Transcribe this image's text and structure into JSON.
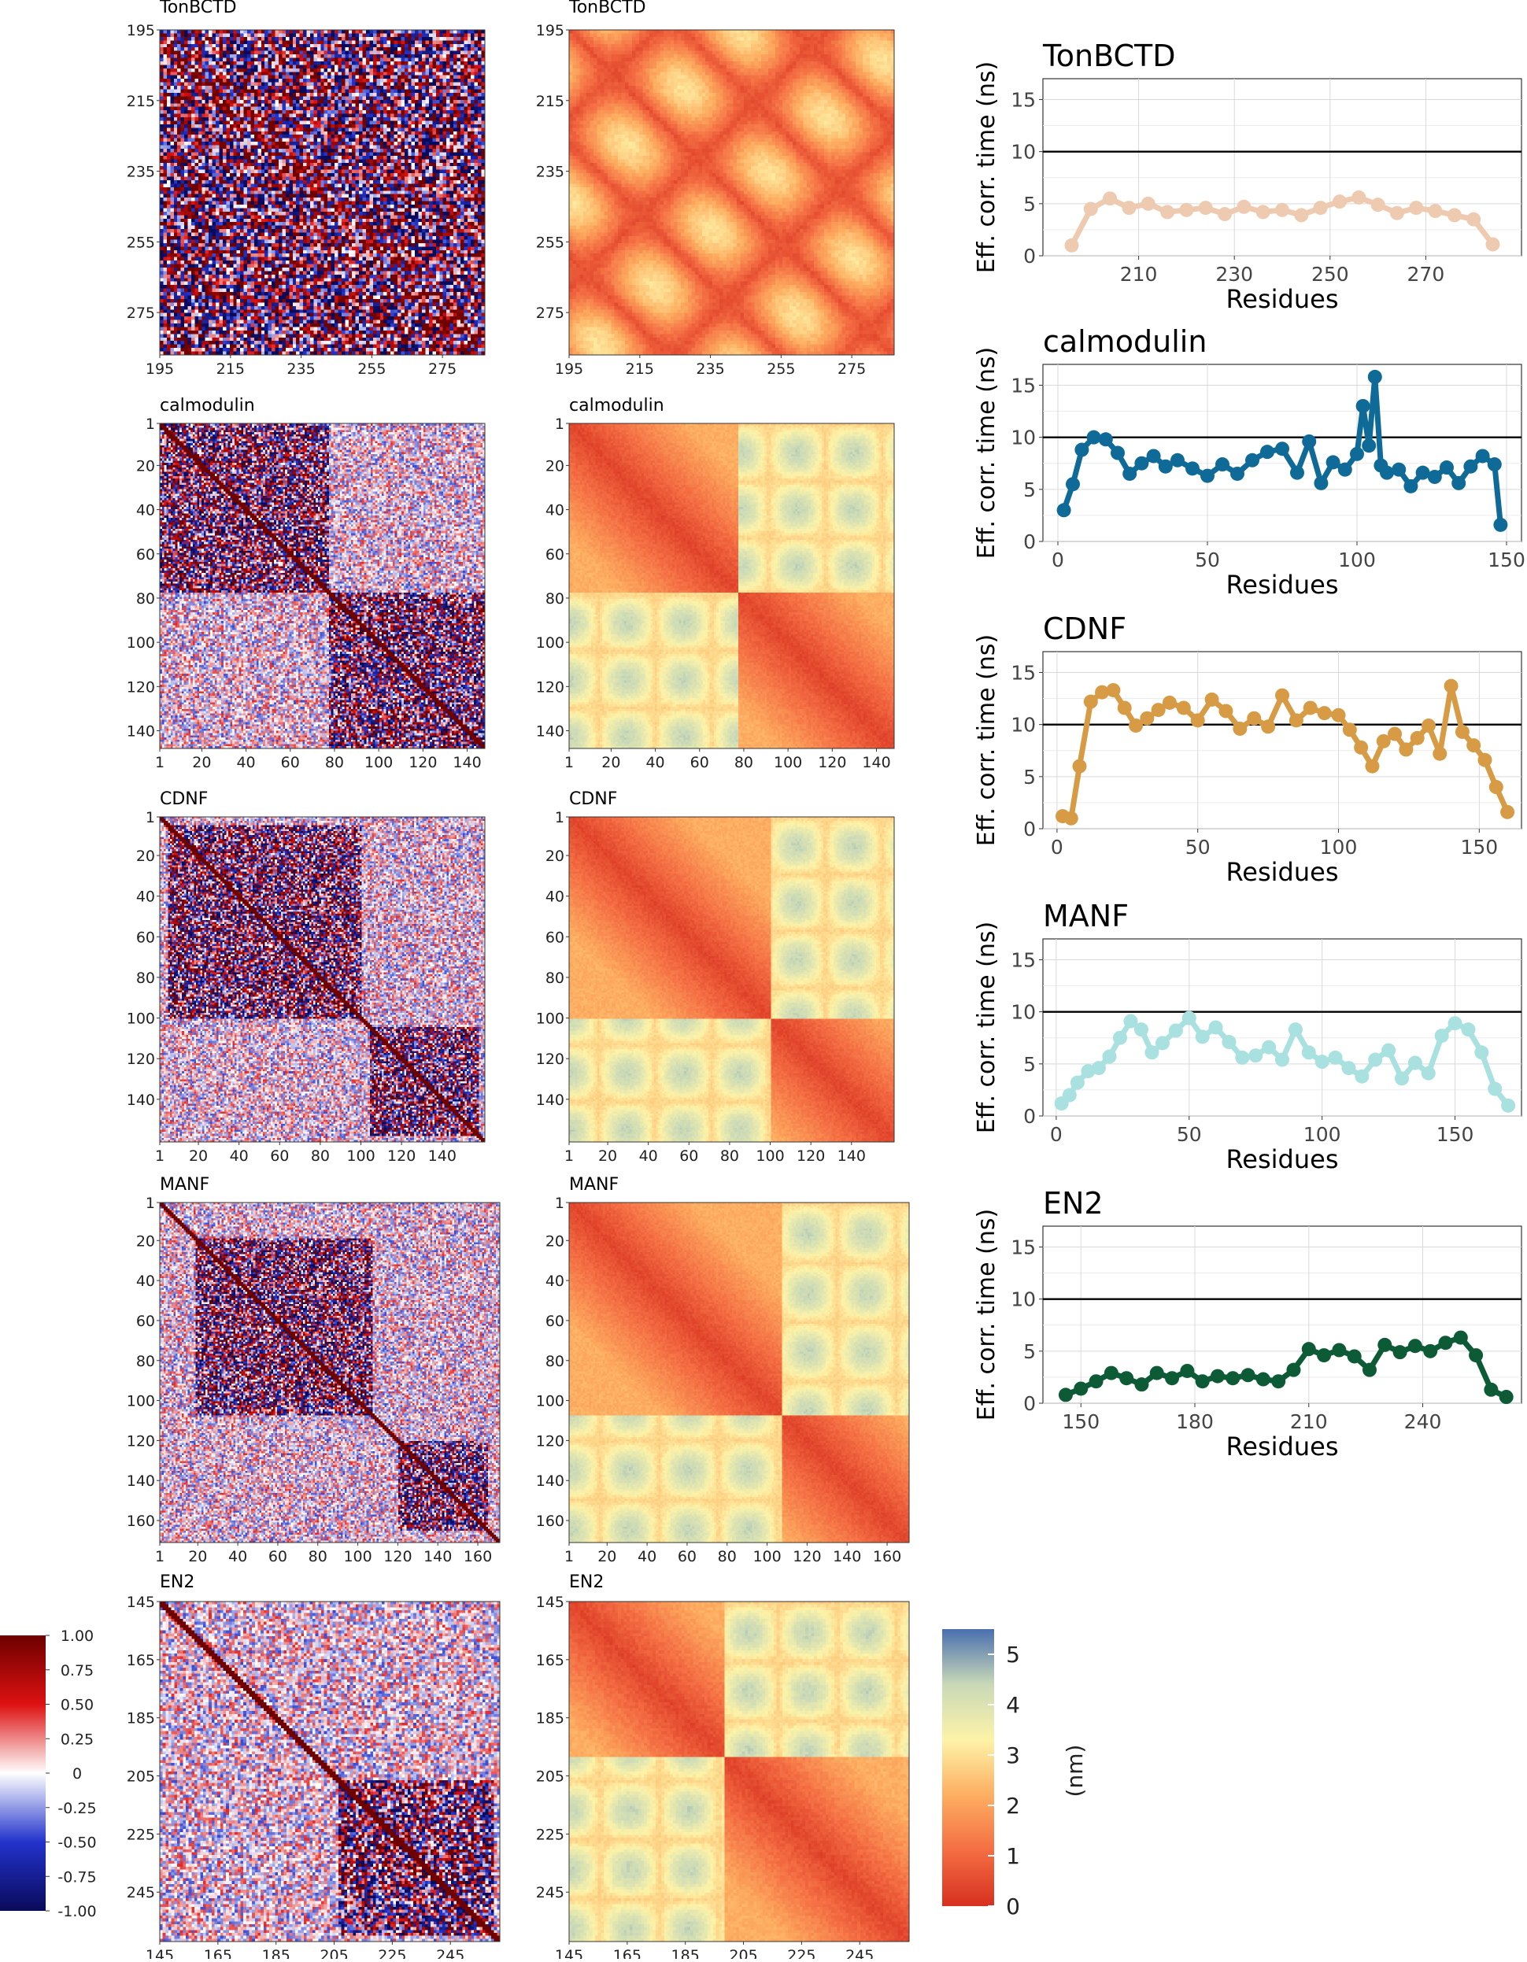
{
  "figure": {
    "rows": [
      "TonBCTD",
      "calmodulin",
      "CDNF",
      "MANF",
      "EN2"
    ]
  },
  "chart_data": [
    {
      "type": "heatmap",
      "panel": "covariance",
      "colorbar": {
        "min": -1.0,
        "max": 1.0,
        "ticks": [
          "1.00",
          "0.75",
          "0.50",
          "0.25",
          "0",
          "-0.25",
          "-0.50",
          "-0.75",
          "-1.00"
        ],
        "colors": [
          "#0a0a5a",
          "#2233cc",
          "#ffffff",
          "#dd1111",
          "#6e0000"
        ]
      },
      "matrices": [
        {
          "title": "TonBCTD",
          "range": [
            195,
            287
          ],
          "ticks": [
            195,
            215,
            235,
            255,
            275
          ]
        },
        {
          "title": "calmodulin",
          "range": [
            1,
            148
          ],
          "ticks": [
            1,
            20,
            40,
            60,
            80,
            100,
            120,
            140
          ]
        },
        {
          "title": "CDNF",
          "range": [
            1,
            161
          ],
          "ticks": [
            1,
            20,
            40,
            60,
            80,
            100,
            120,
            140
          ]
        },
        {
          "title": "MANF",
          "range": [
            1,
            171
          ],
          "ticks": [
            1,
            20,
            40,
            60,
            80,
            100,
            120,
            140,
            160
          ]
        },
        {
          "title": "EN2",
          "range": [
            145,
            262
          ],
          "ticks": [
            145,
            165,
            185,
            205,
            225,
            245
          ]
        }
      ]
    },
    {
      "type": "heatmap",
      "panel": "distance",
      "colorbar": {
        "label": "(nm)",
        "min": 0,
        "max": 5.5,
        "ticks": [
          "5",
          "4",
          "3",
          "2",
          "1",
          "0"
        ],
        "colors": [
          "#d7301f",
          "#f46d43",
          "#fdae61",
          "#fdf3a8",
          "#c9d9b7",
          "#4a6fb0"
        ]
      },
      "matrices": [
        {
          "title": "TonBCTD",
          "range": [
            195,
            287
          ],
          "ticks": [
            195,
            215,
            235,
            255,
            275
          ]
        },
        {
          "title": "calmodulin",
          "range": [
            1,
            148
          ],
          "ticks": [
            1,
            20,
            40,
            60,
            80,
            100,
            120,
            140
          ]
        },
        {
          "title": "CDNF",
          "range": [
            1,
            161
          ],
          "ticks": [
            1,
            20,
            40,
            60,
            80,
            100,
            120,
            140
          ]
        },
        {
          "title": "MANF",
          "range": [
            1,
            171
          ],
          "ticks": [
            1,
            20,
            40,
            60,
            80,
            100,
            120,
            140,
            160
          ]
        },
        {
          "title": "EN2",
          "range": [
            145,
            262
          ],
          "ticks": [
            145,
            165,
            185,
            205,
            225,
            245
          ]
        }
      ]
    },
    {
      "type": "line",
      "panel": "correlation-time",
      "xlabel": "Residues",
      "ylabel": "Eff. corr. time (ns)",
      "ylim": [
        0,
        17
      ],
      "yticks": [
        0,
        5,
        10,
        15
      ],
      "reference_line": 10,
      "series": [
        {
          "name": "TonBCTD",
          "color": "#eecbb0",
          "xlim": [
            190,
            290
          ],
          "xticks": [
            210,
            230,
            250,
            270
          ],
          "x": [
            196,
            200,
            204,
            208,
            212,
            216,
            220,
            224,
            228,
            232,
            236,
            240,
            244,
            248,
            252,
            256,
            260,
            264,
            268,
            272,
            276,
            280,
            284
          ],
          "values": [
            1.0,
            4.5,
            5.5,
            4.6,
            5.0,
            4.2,
            4.4,
            4.6,
            4.0,
            4.7,
            4.2,
            4.4,
            3.9,
            4.6,
            5.2,
            5.6,
            4.9,
            4.1,
            4.6,
            4.3,
            3.9,
            3.5,
            1.1
          ]
        },
        {
          "name": "calmodulin",
          "color": "#0f6a97",
          "xlim": [
            -5,
            155
          ],
          "xticks": [
            0,
            50,
            100,
            150
          ],
          "x": [
            2,
            5,
            8,
            12,
            16,
            20,
            24,
            28,
            32,
            36,
            40,
            45,
            50,
            55,
            60,
            65,
            70,
            75,
            80,
            84,
            88,
            92,
            96,
            100,
            102,
            104,
            106,
            108,
            110,
            114,
            118,
            122,
            126,
            130,
            134,
            138,
            142,
            146,
            148
          ],
          "values": [
            3.0,
            5.5,
            8.8,
            10.0,
            9.8,
            8.5,
            6.5,
            7.5,
            8.2,
            7.2,
            7.8,
            7.0,
            6.3,
            7.4,
            6.5,
            7.8,
            8.6,
            8.9,
            6.6,
            9.6,
            5.6,
            7.6,
            6.9,
            8.4,
            13.0,
            9.2,
            15.8,
            7.3,
            6.6,
            6.9,
            5.3,
            6.6,
            6.2,
            7.1,
            5.6,
            7.2,
            8.2,
            7.4,
            1.6
          ]
        },
        {
          "name": "CDNF",
          "color": "#d79b45",
          "xlim": [
            -5,
            165
          ],
          "xticks": [
            0,
            50,
            100,
            150
          ],
          "x": [
            2,
            5,
            8,
            12,
            16,
            20,
            24,
            28,
            32,
            36,
            40,
            45,
            50,
            55,
            60,
            65,
            70,
            75,
            80,
            85,
            90,
            95,
            100,
            104,
            108,
            112,
            116,
            120,
            124,
            128,
            132,
            136,
            140,
            144,
            148,
            152,
            156,
            160
          ],
          "values": [
            1.2,
            1.0,
            6.0,
            12.2,
            13.1,
            13.3,
            11.6,
            9.9,
            10.6,
            11.4,
            12.1,
            11.6,
            10.4,
            12.4,
            11.3,
            9.6,
            10.6,
            9.8,
            12.8,
            10.4,
            11.6,
            11.1,
            10.9,
            9.5,
            7.8,
            6.0,
            8.4,
            9.1,
            7.6,
            8.7,
            9.9,
            7.2,
            13.7,
            9.3,
            8.0,
            6.6,
            4.0,
            1.6
          ]
        },
        {
          "name": "MANF",
          "color": "#a9e0e0",
          "xlim": [
            -5,
            175
          ],
          "xticks": [
            0,
            50,
            100,
            150
          ],
          "x": [
            2,
            5,
            8,
            12,
            16,
            20,
            24,
            28,
            32,
            36,
            40,
            45,
            50,
            55,
            60,
            65,
            70,
            75,
            80,
            85,
            90,
            95,
            100,
            105,
            110,
            115,
            120,
            125,
            130,
            135,
            140,
            145,
            150,
            155,
            160,
            165,
            170
          ],
          "values": [
            1.2,
            2.0,
            3.2,
            4.3,
            4.6,
            5.7,
            7.5,
            9.1,
            8.3,
            6.1,
            7.0,
            8.2,
            9.4,
            7.6,
            8.5,
            7.1,
            5.6,
            5.8,
            6.6,
            5.4,
            8.3,
            6.1,
            5.2,
            5.6,
            4.6,
            3.8,
            5.4,
            6.3,
            3.6,
            5.1,
            4.1,
            7.7,
            8.9,
            8.3,
            6.1,
            2.6,
            1.0
          ]
        },
        {
          "name": "EN2",
          "color": "#0d5a36",
          "xlim": [
            140,
            266
          ],
          "xticks": [
            150,
            180,
            210,
            240
          ],
          "x": [
            146,
            150,
            154,
            158,
            162,
            166,
            170,
            174,
            178,
            182,
            186,
            190,
            194,
            198,
            202,
            206,
            210,
            214,
            218,
            222,
            226,
            230,
            234,
            238,
            242,
            246,
            250,
            254,
            258,
            262
          ],
          "values": [
            0.8,
            1.4,
            2.1,
            2.9,
            2.4,
            1.8,
            2.9,
            2.4,
            3.1,
            2.1,
            2.6,
            2.4,
            2.7,
            2.3,
            2.1,
            3.2,
            5.2,
            4.6,
            5.1,
            4.5,
            3.2,
            5.6,
            4.9,
            5.5,
            5.0,
            5.8,
            6.3,
            4.6,
            1.3,
            0.6
          ]
        }
      ]
    }
  ]
}
